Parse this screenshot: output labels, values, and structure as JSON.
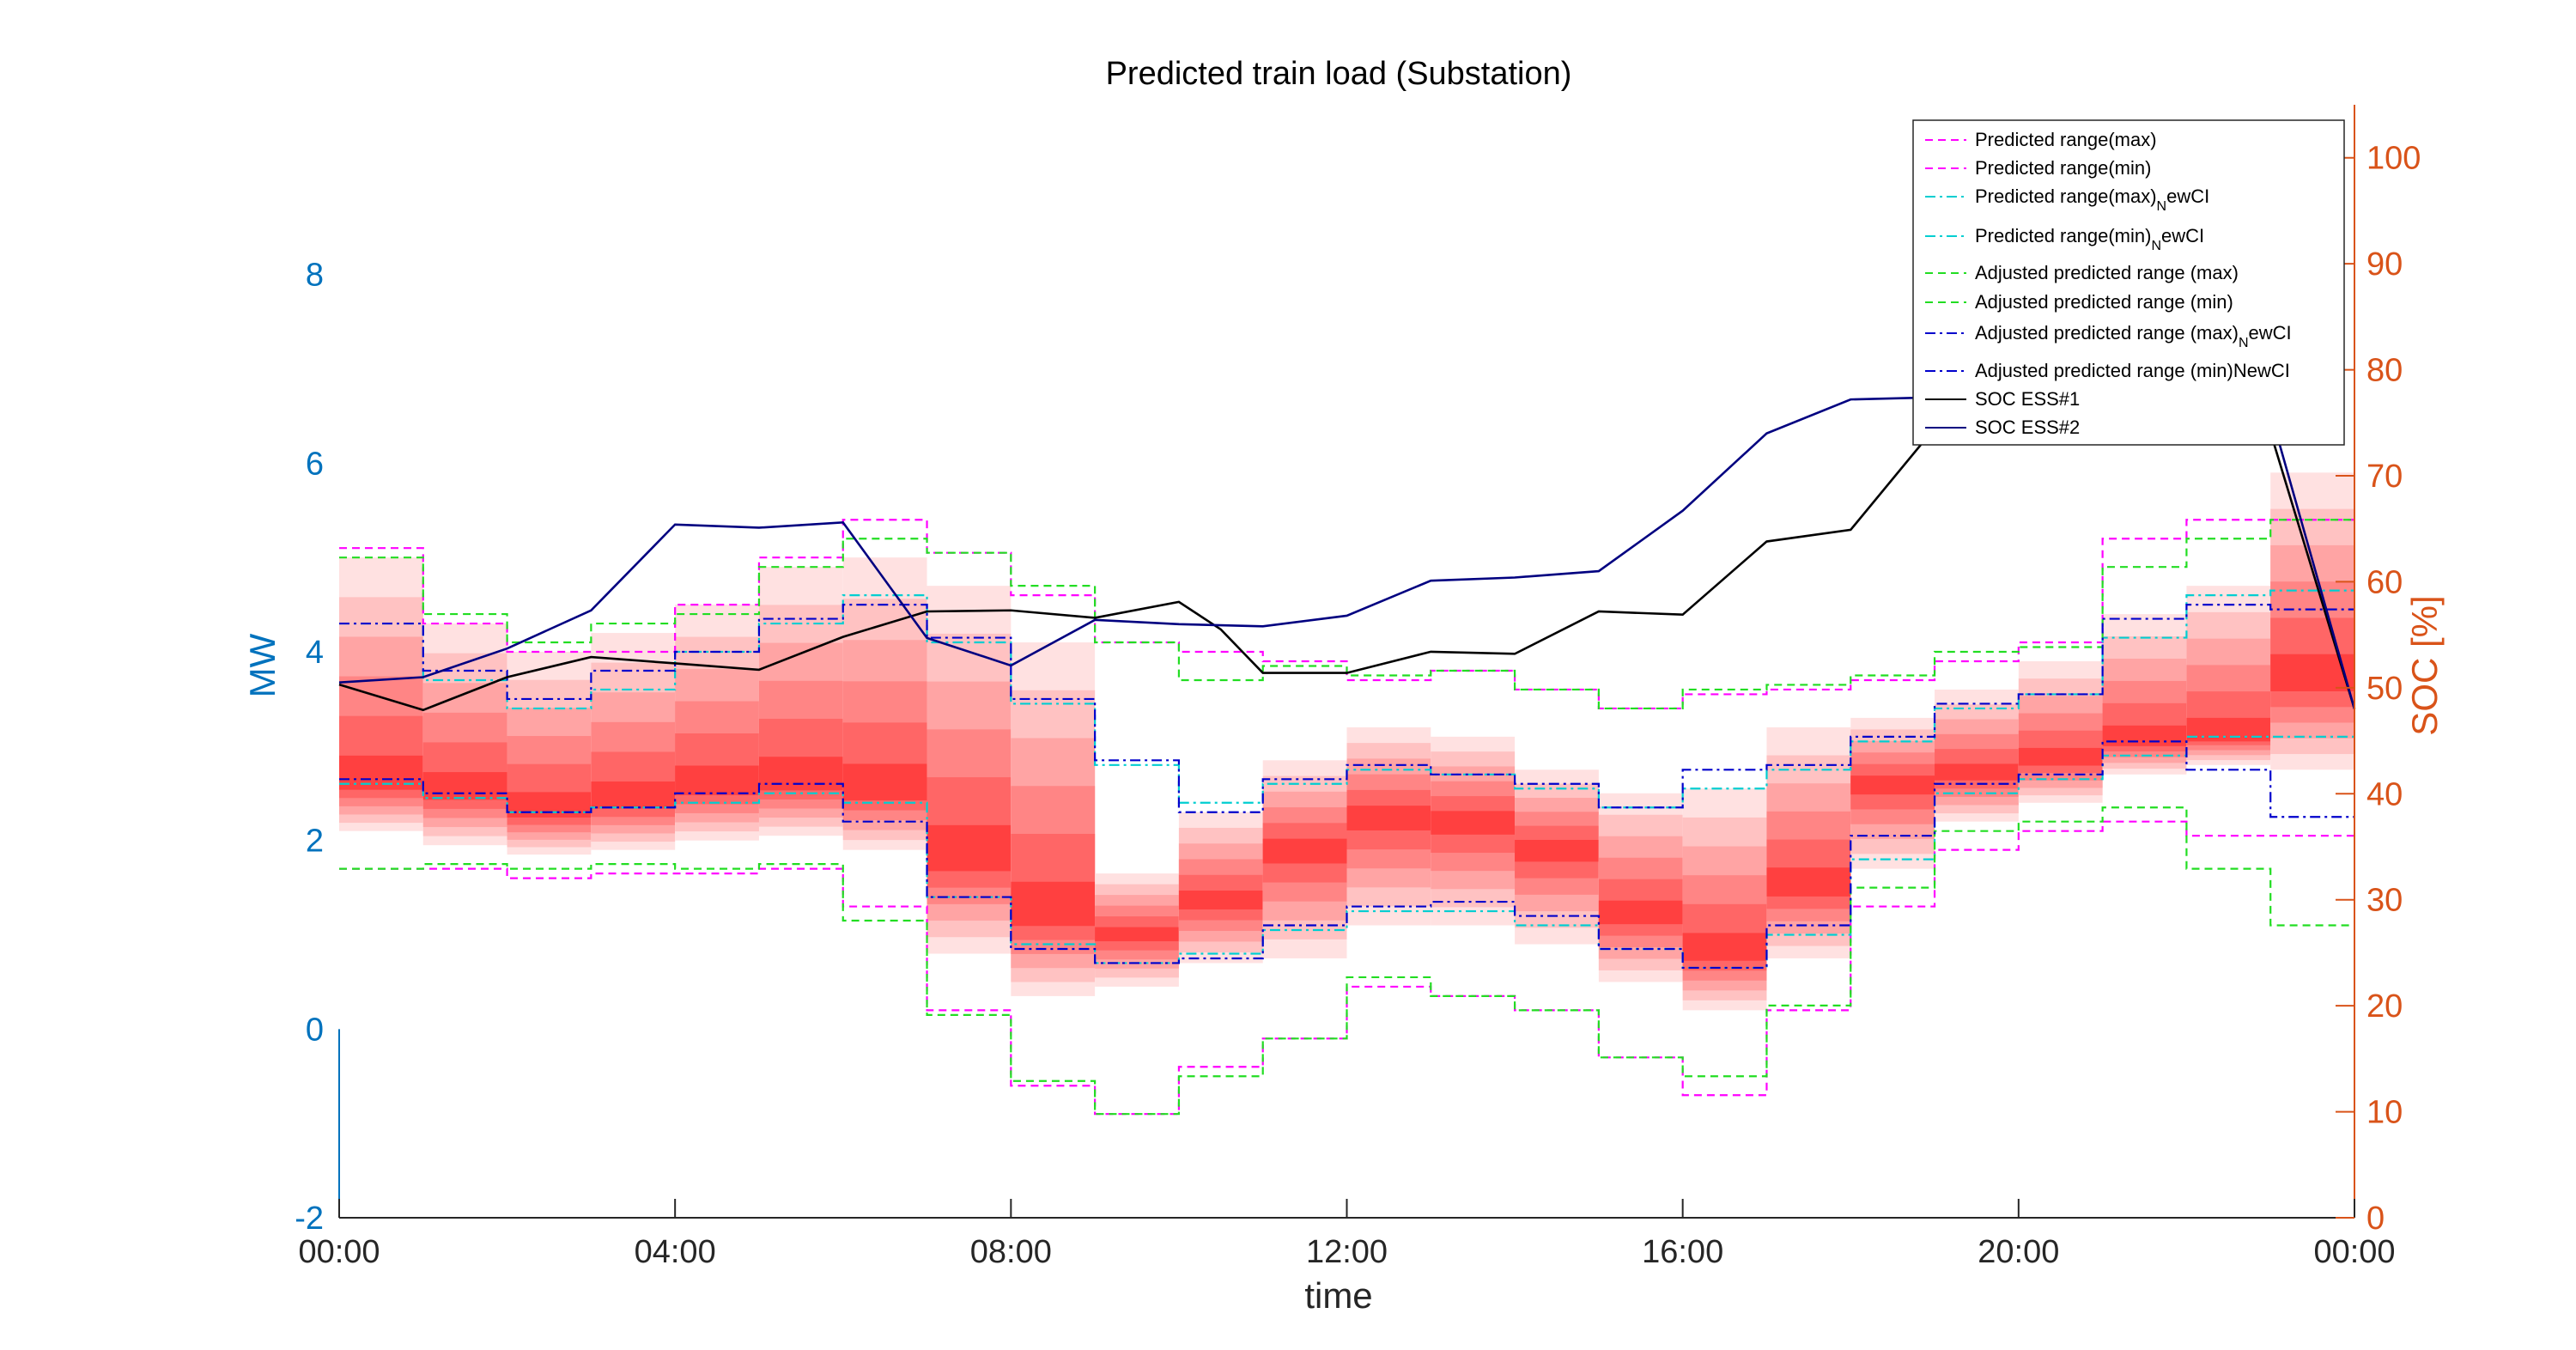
{
  "chart_data": {
    "type": "line",
    "title": "Predicted train load (Substation)",
    "xlabel": "time",
    "ylabel_left": "MW",
    "ylabel_right": "SOC [%]",
    "x_ticks": [
      "00:00",
      "04:00",
      "08:00",
      "12:00",
      "16:00",
      "20:00",
      "00:00"
    ],
    "x_tick_hours": [
      0,
      4,
      8,
      12,
      16,
      20,
      24
    ],
    "xlim_hours": [
      0,
      24
    ],
    "ylim_left": [
      -2,
      9.8
    ],
    "yticks_left": [
      -2,
      0,
      2,
      4,
      6,
      8
    ],
    "ylim_right": [
      0,
      105
    ],
    "yticks_right": [
      0,
      10,
      20,
      30,
      40,
      50,
      60,
      70,
      80,
      90,
      100
    ],
    "colors": {
      "left_axis": "#0072BD",
      "right_axis": "#D95319",
      "predicted": "#FF00FF",
      "predicted_newci": "#00CED1",
      "adjusted": "#22DD22",
      "adjusted_newci": "#0000CC",
      "soc1": "#000000",
      "soc2": "#000080"
    },
    "band_hours": [
      0,
      1,
      2,
      3,
      4,
      5,
      6,
      7,
      8,
      9,
      10,
      11,
      12,
      13,
      14,
      15,
      16,
      17,
      18,
      19,
      20,
      21,
      22,
      23
    ],
    "band_low": [
      2.1,
      1.95,
      1.85,
      1.9,
      2.0,
      2.05,
      1.9,
      0.8,
      0.35,
      0.45,
      0.7,
      0.75,
      1.1,
      1.1,
      0.9,
      0.5,
      0.2,
      0.75,
      1.7,
      2.2,
      2.4,
      2.7,
      2.8,
      2.75
    ],
    "band_high": [
      5.0,
      4.3,
      4.0,
      4.2,
      4.5,
      4.9,
      5.0,
      4.7,
      4.1,
      1.65,
      2.3,
      2.85,
      3.2,
      3.1,
      2.75,
      2.5,
      2.55,
      3.2,
      3.3,
      3.6,
      3.9,
      4.4,
      4.7,
      5.9
    ],
    "band_core": [
      2.6,
      2.5,
      2.3,
      2.4,
      2.55,
      2.6,
      2.5,
      1.8,
      1.2,
      1.0,
      1.35,
      1.9,
      2.25,
      2.2,
      1.9,
      1.2,
      0.8,
      1.5,
      2.6,
      2.7,
      2.85,
      3.05,
      3.1,
      3.7
    ],
    "series": [
      {
        "name": "Predicted range(max)",
        "style": "dashed",
        "color": "#FF00FF",
        "values": [
          5.1,
          4.3,
          4.0,
          4.0,
          4.5,
          5.0,
          5.4,
          5.05,
          4.6,
          4.1,
          4.0,
          3.9,
          3.7,
          3.8,
          3.6,
          3.4,
          3.55,
          3.6,
          3.7,
          3.9,
          4.1,
          5.2,
          5.4,
          5.4
        ]
      },
      {
        "name": "Predicted range(min)",
        "style": "dashed",
        "color": "#FF00FF",
        "values": [
          1.7,
          1.7,
          1.6,
          1.65,
          1.65,
          1.7,
          1.3,
          0.2,
          -0.6,
          -0.9,
          -0.4,
          -0.1,
          0.45,
          0.35,
          0.2,
          -0.3,
          -0.7,
          0.2,
          1.3,
          1.9,
          2.1,
          2.2,
          2.05,
          2.05
        ]
      },
      {
        "name": "Predicted range(max)_NewCI",
        "style": "dashdot",
        "color": "#00CED1",
        "values": [
          4.3,
          3.7,
          3.4,
          3.6,
          4.0,
          4.3,
          4.6,
          4.1,
          3.45,
          2.8,
          2.4,
          2.6,
          2.75,
          2.7,
          2.55,
          2.35,
          2.55,
          2.75,
          3.05,
          3.4,
          3.55,
          4.15,
          4.6,
          4.65
        ]
      },
      {
        "name": "Predicted range(min)_NewCI",
        "style": "dashdot",
        "color": "#00CED1",
        "values": [
          2.6,
          2.45,
          2.3,
          2.35,
          2.4,
          2.5,
          2.4,
          1.4,
          0.9,
          0.7,
          0.8,
          1.05,
          1.25,
          1.25,
          1.1,
          0.85,
          0.65,
          1.0,
          1.8,
          2.5,
          2.65,
          2.9,
          3.1,
          3.1
        ]
      },
      {
        "name": "Adjusted predicted range (max)",
        "style": "dashed",
        "color": "#22DD22",
        "values": [
          5.0,
          4.4,
          4.1,
          4.3,
          4.4,
          4.9,
          5.2,
          5.05,
          4.7,
          4.1,
          3.7,
          3.85,
          3.75,
          3.8,
          3.6,
          3.4,
          3.6,
          3.65,
          3.75,
          4.0,
          4.05,
          4.9,
          5.2,
          5.4
        ]
      },
      {
        "name": "Adjusted predicted range (min)",
        "style": "dashed",
        "color": "#22DD22",
        "values": [
          1.7,
          1.75,
          1.7,
          1.75,
          1.7,
          1.75,
          1.15,
          0.15,
          -0.55,
          -0.9,
          -0.5,
          -0.1,
          0.55,
          0.35,
          0.2,
          -0.3,
          -0.5,
          0.25,
          1.5,
          2.1,
          2.2,
          2.35,
          1.7,
          1.1
        ]
      },
      {
        "name": "Adjusted predicted range (max)_NewCI",
        "style": "dashdot",
        "color": "#0000CC",
        "values": [
          4.3,
          3.8,
          3.5,
          3.8,
          4.0,
          4.35,
          4.5,
          4.15,
          3.5,
          2.85,
          2.3,
          2.65,
          2.8,
          2.7,
          2.6,
          2.35,
          2.75,
          2.8,
          3.1,
          3.45,
          3.55,
          4.35,
          4.5,
          4.45
        ]
      },
      {
        "name": "Adjusted predicted range (min)NewCI",
        "style": "dashdot",
        "color": "#0000CC",
        "values": [
          2.65,
          2.5,
          2.3,
          2.35,
          2.5,
          2.6,
          2.2,
          1.4,
          0.85,
          0.7,
          0.75,
          1.1,
          1.3,
          1.35,
          1.2,
          0.85,
          0.65,
          1.1,
          2.05,
          2.6,
          2.7,
          3.05,
          2.75,
          2.25
        ]
      },
      {
        "name": "SOC ESS#1",
        "axis": "right",
        "style": "solid",
        "color": "#000000",
        "x": [
          0,
          1,
          2,
          3,
          4,
          5,
          6,
          7,
          8,
          9,
          10,
          10.5,
          11,
          12,
          13,
          14,
          15,
          16,
          17,
          18,
          19,
          20,
          21,
          22,
          23,
          24
        ],
        "values": [
          50.3,
          47.9,
          51.0,
          52.9,
          52.3,
          51.7,
          54.8,
          57.2,
          57.3,
          56.6,
          58.1,
          55.5,
          51.4,
          51.4,
          53.4,
          53.2,
          57.2,
          56.9,
          63.8,
          64.9,
          74.5,
          74.8,
          75.4,
          73.8,
          74.1,
          48.0
        ]
      },
      {
        "name": "SOC ESS#2",
        "axis": "right",
        "style": "solid",
        "color": "#000080",
        "x": [
          0,
          1,
          2,
          3,
          4,
          5,
          6,
          7,
          8,
          9,
          10,
          11,
          12,
          13,
          14,
          15,
          16,
          17,
          18,
          19,
          20,
          21,
          22,
          23,
          24
        ],
        "values": [
          50.5,
          51.0,
          53.7,
          57.3,
          65.4,
          65.1,
          65.6,
          54.7,
          52.1,
          56.4,
          56.0,
          55.8,
          56.8,
          60.1,
          60.4,
          61.0,
          66.7,
          74.0,
          77.2,
          77.4,
          76.8,
          76.4,
          76.8,
          76.0,
          48.0
        ]
      }
    ],
    "legend_placement": "top-right",
    "grid": false
  }
}
